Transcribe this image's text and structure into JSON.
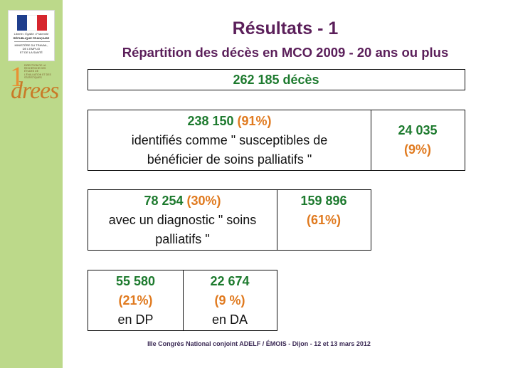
{
  "title": "Résultats - 1",
  "subtitle": "Répartition des décès en MCO 2009 - 20 ans ou plus",
  "logos": {
    "republique": {
      "motto": "Liberté • Égalité • Fraternité",
      "name": "RÉPUBLIQUE FRANÇAISE",
      "ministry_1": "MINISTÈRE DU TRAVAIL,",
      "ministry_2": "DE L'EMPLOI",
      "ministry_3": "ET DE LA SANTÉ",
      "flag_colors": [
        "#1f3e8c",
        "#ffffff",
        "#d6262e"
      ]
    },
    "drees": {
      "brand": "drees",
      "caption": "DIRECTION DE LA RECHERCHE DES ÉTUDES DE L'ÉVALUATION ET DES STATISTIQUES"
    }
  },
  "levels": [
    {
      "cells": [
        {
          "value": "262 185 décès"
        }
      ]
    },
    {
      "cells": [
        {
          "value": "238 150",
          "percent": "(91%)",
          "label_1": "identifiés comme \" susceptibles de",
          "label_2": "bénéficier de soins palliatifs \""
        },
        {
          "value": "24 035",
          "percent": "(9%)"
        }
      ]
    },
    {
      "cells": [
        {
          "value": "78 254",
          "percent": "(30%)",
          "label_1": "avec un diagnostic \" soins",
          "label_2": "palliatifs \""
        },
        {
          "value": "159 896",
          "percent": "(61%)"
        }
      ]
    },
    {
      "cells": [
        {
          "value": "55 580",
          "percent": "(21%)",
          "label_1": "en DP"
        },
        {
          "value": "22 674",
          "percent": "(9 %)",
          "label_1": "en DA"
        }
      ]
    }
  ],
  "colors": {
    "title": "#5b1f5a",
    "value_green": "#1d7a2e",
    "percent_orange": "#e07a1f",
    "sidebar_green": "#bcd98a"
  },
  "footer": "IIIe Congrès National conjoint ADELF / ÉMOIS - Dijon - 12 et 13 mars 2012"
}
